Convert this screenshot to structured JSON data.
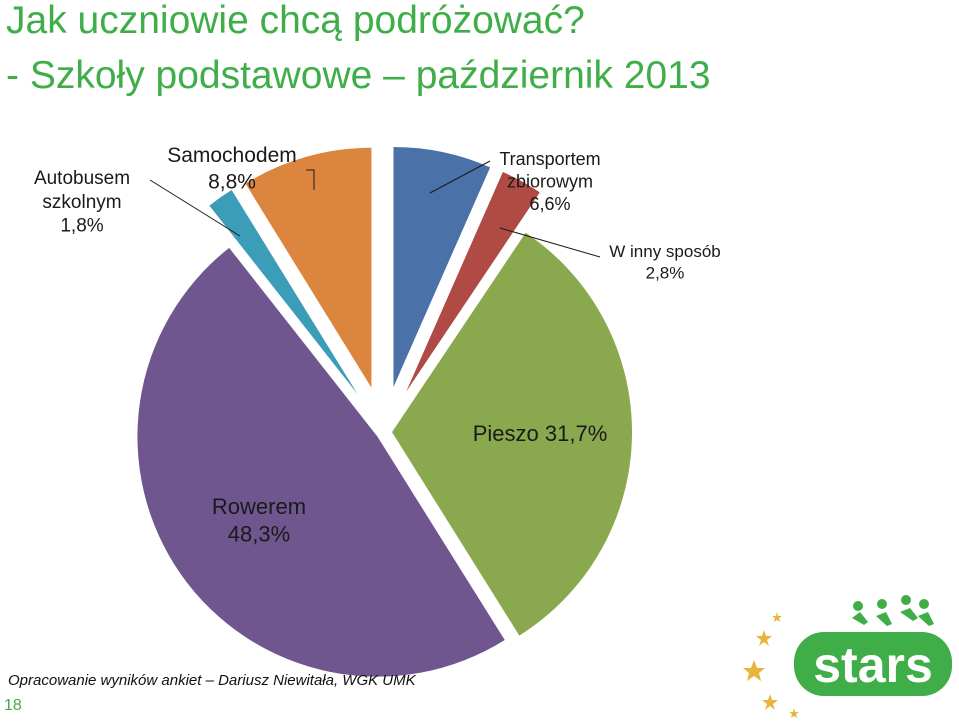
{
  "title_line1": "Jak uczniowie chcą podróżować?",
  "title_line2": "- Szkoły podstawowe – październik 2013",
  "footer": "Opracowanie wyników ankiet – Dariusz Niewitała, WGK UMK",
  "page_number": "18",
  "logo_text": "stars",
  "chart_data": {
    "type": "pie",
    "title": "",
    "slices": [
      {
        "label": "Transportem zbiorowym",
        "value": 6.6,
        "value_label": "6,6%",
        "color": "#4a72a8",
        "label_lines": [
          "Transportem",
          "zbiorowym",
          "6,6%"
        ]
      },
      {
        "label": "W inny sposób",
        "value": 2.8,
        "value_label": "2,8%",
        "color": "#b04a45",
        "label_lines": [
          "W inny sposób",
          "2,8%"
        ]
      },
      {
        "label": "Pieszo",
        "value": 31.7,
        "value_label": "31,7%",
        "color": "#8aa84e",
        "label_lines": [
          "Pieszo 31,7%"
        ]
      },
      {
        "label": "Rowerem",
        "value": 48.3,
        "value_label": "48,3%",
        "color": "#6f568e",
        "label_lines": [
          "Rowerem",
          "48,3%"
        ]
      },
      {
        "label": "Autobusem szkolnym",
        "value": 1.8,
        "value_label": "1,8%",
        "color": "#3c9db8",
        "label_lines": [
          "Autobusem",
          "szkolnym",
          "1,8%"
        ]
      },
      {
        "label": "Samochodem",
        "value": 8.8,
        "value_label": "8,8%",
        "color": "#dc853f",
        "label_lines": [
          "Samochodem",
          "8,8%"
        ]
      }
    ],
    "start_angle_deg": 0,
    "direction": "clockwise",
    "exploded": true,
    "legend": "none"
  }
}
